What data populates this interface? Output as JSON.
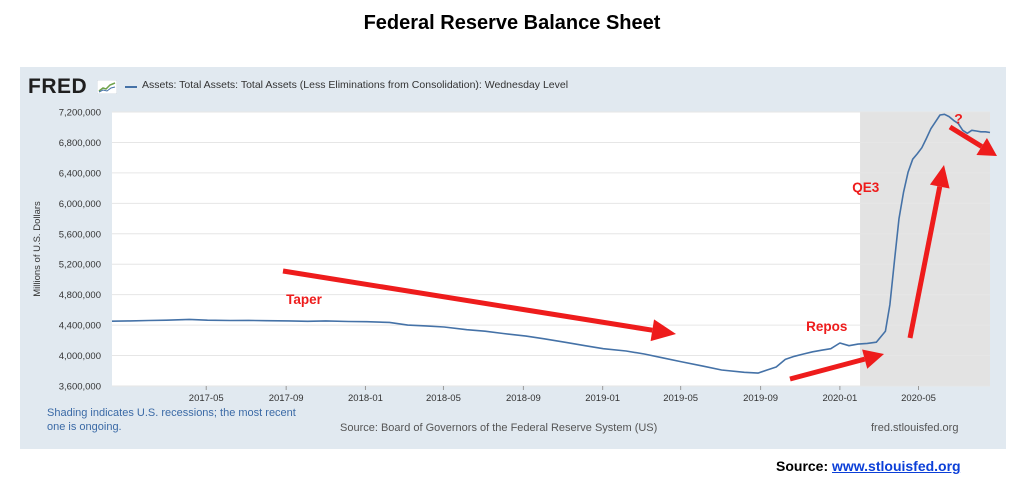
{
  "page": {
    "title": "Federal Reserve Balance Sheet",
    "source_label": "Source:",
    "source_link": "www.stlouisfed.org"
  },
  "fred": {
    "logo": "FRED",
    "logo_icon": "fred-chart-icon",
    "series_label": "Assets: Total Assets: Total Assets (Less Eliminations from Consolidation): Wednesday Level",
    "shading_note": "Shading indicates U.S. recessions; the most recent one is ongoing.",
    "source_note": "Source: Board of Governors of the Federal Reserve System (US)",
    "site": "fred.stlouisfed.org"
  },
  "colors": {
    "series": "#4572a7",
    "panel": "#e1e9f0",
    "recession": "#e3e3e3",
    "annotation": "#ee1c1c"
  },
  "chart_data": {
    "type": "line",
    "title": "Federal Reserve Balance Sheet",
    "xlabel": "",
    "ylabel": "Millions of U.S. Dollars",
    "ylim": [
      3600000,
      7200000
    ],
    "xlim": [
      "2016-12-07",
      "2020-08-19"
    ],
    "grid": true,
    "legend_position": "top-left",
    "y_ticks": [
      3600000,
      4000000,
      4400000,
      4800000,
      5200000,
      5600000,
      6000000,
      6400000,
      6800000,
      7200000
    ],
    "y_tick_labels": [
      "3,600,000",
      "4,000,000",
      "4,400,000",
      "4,800,000",
      "5,200,000",
      "5,600,000",
      "6,000,000",
      "6,400,000",
      "6,800,000",
      "7,200,000"
    ],
    "x_ticks": [
      "2017-05-01",
      "2017-09-01",
      "2018-01-01",
      "2018-05-01",
      "2018-09-01",
      "2019-01-01",
      "2019-05-01",
      "2019-09-01",
      "2020-01-01",
      "2020-05-01"
    ],
    "x_tick_labels": [
      "2017-05",
      "2017-09",
      "2018-01",
      "2018-05",
      "2018-09",
      "2019-01",
      "2019-05",
      "2019-09",
      "2020-01",
      "2020-05"
    ],
    "recession": {
      "start": "2020-02-01",
      "end": "2020-08-19"
    },
    "series": [
      {
        "name": "Assets: Total Assets: Total Assets (Less Eliminations from Consolidation): Wednesday Level",
        "x": [
          "2016-12-07",
          "2017-01-04",
          "2017-02-01",
          "2017-03-01",
          "2017-04-05",
          "2017-05-03",
          "2017-06-07",
          "2017-07-05",
          "2017-08-02",
          "2017-09-06",
          "2017-10-04",
          "2017-11-01",
          "2017-12-06",
          "2018-01-03",
          "2018-02-07",
          "2018-03-07",
          "2018-04-04",
          "2018-05-02",
          "2018-06-06",
          "2018-07-04",
          "2018-08-01",
          "2018-09-05",
          "2018-10-03",
          "2018-11-07",
          "2018-12-05",
          "2019-01-02",
          "2019-02-06",
          "2019-03-06",
          "2019-04-03",
          "2019-05-01",
          "2019-06-05",
          "2019-07-03",
          "2019-08-07",
          "2019-08-28",
          "2019-09-11",
          "2019-09-25",
          "2019-10-09",
          "2019-10-23",
          "2019-11-06",
          "2019-11-20",
          "2019-12-04",
          "2019-12-18",
          "2020-01-01",
          "2020-01-15",
          "2020-01-29",
          "2020-02-12",
          "2020-02-26",
          "2020-03-11",
          "2020-03-18",
          "2020-03-25",
          "2020-04-01",
          "2020-04-08",
          "2020-04-15",
          "2020-04-22",
          "2020-04-29",
          "2020-05-06",
          "2020-05-13",
          "2020-05-20",
          "2020-05-27",
          "2020-06-03",
          "2020-06-10",
          "2020-06-17",
          "2020-06-24",
          "2020-07-01",
          "2020-07-08",
          "2020-07-15",
          "2020-07-22",
          "2020-07-29",
          "2020-08-05",
          "2020-08-12",
          "2020-08-19"
        ],
        "values": [
          4452000,
          4455000,
          4460000,
          4465000,
          4475000,
          4465000,
          4460000,
          4462000,
          4458000,
          4455000,
          4450000,
          4455000,
          4448000,
          4445000,
          4435000,
          4400000,
          4390000,
          4375000,
          4340000,
          4320000,
          4290000,
          4255000,
          4220000,
          4170000,
          4130000,
          4090000,
          4060000,
          4020000,
          3970000,
          3920000,
          3860000,
          3810000,
          3780000,
          3770000,
          3810000,
          3850000,
          3950000,
          3990000,
          4020000,
          4050000,
          4070000,
          4090000,
          4165000,
          4130000,
          4150000,
          4160000,
          4175000,
          4320000,
          4670000,
          5250000,
          5800000,
          6150000,
          6410000,
          6580000,
          6650000,
          6730000,
          6850000,
          6980000,
          7070000,
          7160000,
          7170000,
          7140000,
          7090000,
          7050000,
          6960000,
          6920000,
          6960000,
          6950000,
          6940000,
          6940000,
          6930000
        ]
      }
    ],
    "annotations": [
      {
        "text": "Taper",
        "x": "2017-09-01",
        "y": 4680000
      },
      {
        "text": "Repos",
        "x": "2019-11-10",
        "y": 4320000
      },
      {
        "text": "QE3",
        "x": "2020-01-20",
        "y": 6150000
      },
      {
        "text": "?",
        "x": "2020-06-25",
        "y": 7050000
      }
    ]
  }
}
